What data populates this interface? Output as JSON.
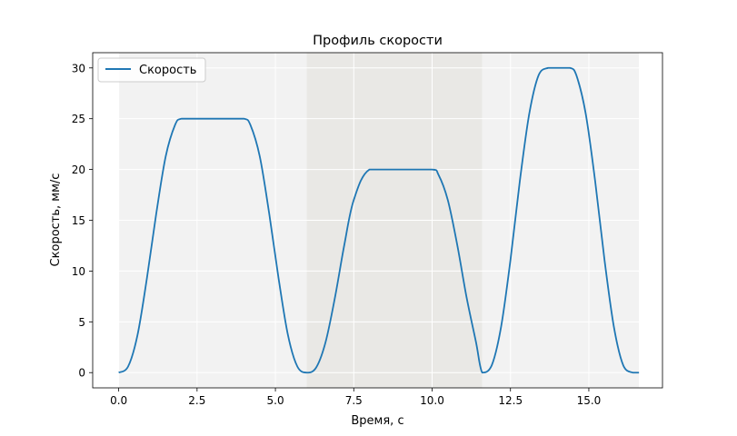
{
  "chart_data": {
    "type": "line",
    "title": "Профиль скорости",
    "xlabel": "Время, с",
    "ylabel": "Скорость, мм/с",
    "xlim": [
      -0.83,
      17.35
    ],
    "ylim": [
      -1.5,
      31.5
    ],
    "xticks": [
      0.0,
      2.5,
      5.0,
      7.5,
      10.0,
      12.5,
      15.0
    ],
    "xtick_labels": [
      "0.0",
      "2.5",
      "5.0",
      "7.5",
      "10.0",
      "12.5",
      "15.0"
    ],
    "yticks": [
      0,
      5,
      10,
      15,
      20,
      25,
      30
    ],
    "ytick_labels": [
      "0",
      "5",
      "10",
      "15",
      "20",
      "25",
      "30"
    ],
    "grid": true,
    "legend_position": "top-left",
    "shaded_intervals": [
      {
        "x0": 0.0,
        "x1": 6.0,
        "color": "#f2f2f2"
      },
      {
        "x0": 6.0,
        "x1": 11.6,
        "color": "#e9e8e5"
      },
      {
        "x0": 11.6,
        "x1": 16.6,
        "color": "#f2f2f2"
      }
    ],
    "series": [
      {
        "name": "Скорость",
        "color": "#1f77b4",
        "x": [
          0.0,
          0.3,
          0.6,
          0.9,
          1.2,
          1.5,
          1.8,
          2.0,
          2.5,
          3.0,
          3.5,
          4.0,
          4.2,
          4.5,
          4.8,
          5.1,
          5.4,
          5.7,
          6.0,
          6.3,
          6.6,
          6.9,
          7.2,
          7.5,
          8.0,
          9.0,
          10.0,
          10.2,
          10.5,
          10.8,
          11.1,
          11.4,
          11.6,
          11.9,
          12.2,
          12.5,
          12.8,
          13.1,
          13.4,
          13.7,
          14.0,
          14.4,
          14.6,
          14.9,
          15.2,
          15.5,
          15.8,
          16.1,
          16.4,
          16.6
        ],
        "y": [
          0.0,
          0.6,
          3.7,
          9.3,
          15.7,
          21.3,
          24.4,
          25.0,
          25.0,
          25.0,
          25.0,
          25.0,
          24.4,
          21.3,
          15.7,
          9.3,
          3.7,
          0.6,
          0.0,
          0.5,
          3.0,
          7.4,
          12.6,
          17.0,
          20.0,
          20.0,
          20.0,
          19.5,
          17.0,
          12.6,
          7.4,
          3.0,
          0.0,
          0.7,
          4.5,
          11.1,
          18.9,
          25.5,
          29.3,
          30.0,
          30.0,
          30.0,
          29.3,
          25.5,
          18.9,
          11.1,
          4.5,
          0.7,
          0.0,
          0.0
        ]
      }
    ]
  }
}
